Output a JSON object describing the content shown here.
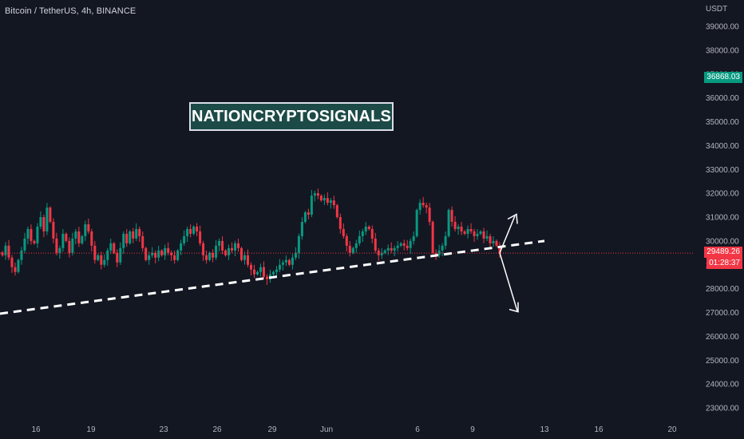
{
  "header": {
    "symbol": "Bitcoin / TetherUS, 4h, BINANCE",
    "currency": "USDT"
  },
  "watermark": "NATIONCRYPTOSIGNALS",
  "price_tags": {
    "upper": {
      "value": "36868.03",
      "color": "#089981"
    },
    "current": {
      "value": "29489.26",
      "countdown": "01:28:37",
      "color": "#f23645"
    }
  },
  "colors": {
    "up": "#089981",
    "down": "#f23645",
    "background": "#131722",
    "trendline": "#ffffff"
  },
  "chart_data": {
    "type": "candlestick",
    "title": "",
    "xlabel": "",
    "ylabel": "",
    "ylim": [
      22700,
      39600
    ],
    "yticks": [
      "39000.00",
      "38000.00",
      "37000.00",
      "36000.00",
      "35000.00",
      "34000.00",
      "33000.00",
      "32000.00",
      "31000.00",
      "30000.00",
      "29000.00",
      "28000.00",
      "27000.00",
      "26000.00",
      "25000.00",
      "24000.00",
      "23000.00"
    ],
    "xticks": [
      "16",
      "19",
      "23",
      "26",
      "29",
      "Jun",
      "6",
      "9",
      "13",
      "16",
      "20"
    ],
    "grid": false,
    "series": [
      {
        "x": "May 14",
        "values": [
          29400,
          29800,
          29300,
          28900,
          28700,
          29200,
          29600,
          30100,
          30500,
          30000,
          29900,
          30600,
          31000,
          30400,
          31400,
          30800,
          30100,
          29500,
          29700,
          30300,
          30000,
          29500,
          30100,
          30400,
          29900,
          30200,
          30700,
          30400,
          29800,
          29200,
          29400,
          29000,
          29200,
          29600,
          29900,
          29500,
          29100,
          29700,
          30300,
          29900,
          30400,
          30100,
          30500,
          30200,
          29700,
          29200,
          29400,
          29500,
          29300,
          29600,
          29400,
          29700,
          29500,
          29400,
          29200,
          29600,
          29900,
          30200,
          30500,
          30300,
          30600,
          30400,
          29900,
          29400,
          29200,
          29500,
          29300,
          29800,
          30000,
          29600,
          29400,
          29700,
          29600,
          29900,
          29700,
          29200,
          29400,
          29000,
          28800,
          28600,
          28700,
          28900,
          28500,
          28400,
          28600,
          28700,
          28800,
          29000,
          29100,
          29200,
          29000,
          29300,
          29500,
          30200,
          30800,
          31200,
          31100,
          31900,
          32000,
          31900,
          31700,
          31800,
          31600,
          31700,
          31500,
          31000,
          30500,
          30200,
          29800,
          29500,
          29700,
          29900,
          30200,
          30400,
          30600,
          30500,
          30100,
          29600,
          29400,
          29500,
          29600,
          29700,
          29600,
          29700,
          29800,
          29900,
          29800,
          29700,
          30000,
          30200,
          31300,
          31600,
          31500,
          31400,
          30800,
          29500,
          29400,
          29600,
          29800,
          30200,
          31300,
          30800,
          30500,
          30600,
          30400,
          30300,
          30500,
          30400,
          30200,
          30300,
          30400,
          30100,
          30200,
          29900,
          30000,
          29800,
          29489
        ]
      }
    ],
    "trendline": {
      "from": {
        "x": "May 14",
        "y": 26950
      },
      "to": {
        "x": "Jun 12",
        "y": 30000
      },
      "style": "dashed"
    },
    "projection_arrows": {
      "origin_y": 29500,
      "up_target_y": 30850,
      "down_target_y": 27900
    }
  }
}
